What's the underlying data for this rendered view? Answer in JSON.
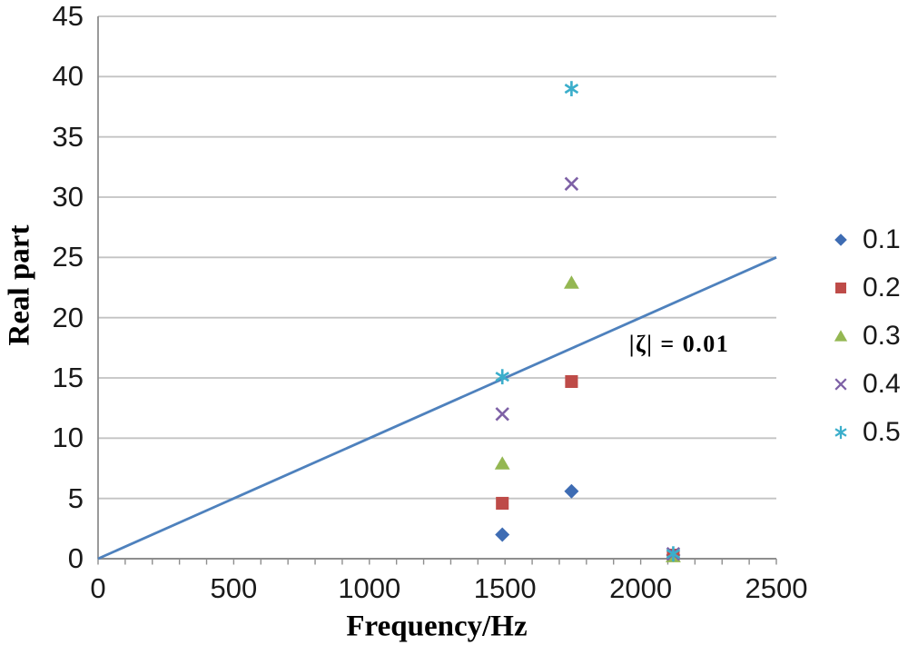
{
  "chart_data": {
    "type": "scatter",
    "title": "",
    "xlabel": "Frequency/Hz",
    "ylabel": "Real part",
    "xlim": [
      0,
      2500
    ],
    "ylim": [
      0,
      45
    ],
    "x_ticks": [
      0,
      500,
      1000,
      1500,
      2000,
      2500
    ],
    "y_ticks": [
      0,
      5,
      10,
      15,
      20,
      25,
      30,
      35,
      40,
      45
    ],
    "x_minor_tick_step": 100,
    "grid": "horizontal",
    "legend_position": "right",
    "annotation": {
      "text": "|ζ| = 0.01",
      "x": 2140,
      "y": 17.6
    },
    "ref_line": {
      "label": "|ζ| = 0.01",
      "points": [
        [
          0,
          0
        ],
        [
          2500,
          25
        ]
      ],
      "color": "#4E81BD"
    },
    "series": [
      {
        "name": "0.1",
        "marker": "diamond",
        "color": "#3E6CB3",
        "points": [
          [
            1490,
            2.0
          ],
          [
            1745,
            5.6
          ],
          [
            2120,
            0.3
          ]
        ]
      },
      {
        "name": "0.2",
        "marker": "square",
        "color": "#BE4B48",
        "points": [
          [
            1490,
            4.6
          ],
          [
            1745,
            14.7
          ],
          [
            2120,
            0.3
          ]
        ]
      },
      {
        "name": "0.3",
        "marker": "triangle",
        "color": "#94B752",
        "points": [
          [
            1490,
            7.9
          ],
          [
            1745,
            22.9
          ],
          [
            2120,
            0.2
          ]
        ]
      },
      {
        "name": "0.4",
        "marker": "x",
        "color": "#7E61A6",
        "points": [
          [
            1490,
            12.0
          ],
          [
            1745,
            31.1
          ],
          [
            2120,
            0.4
          ]
        ]
      },
      {
        "name": "0.5",
        "marker": "asterisk",
        "color": "#3BAECB",
        "points": [
          [
            1490,
            15.1
          ],
          [
            1745,
            39.0
          ],
          [
            2120,
            0.4
          ]
        ]
      }
    ],
    "colors": {
      "gridline": "#C3C3C3",
      "axis": "#8E8E8E",
      "text": "#1A1A1A"
    }
  }
}
